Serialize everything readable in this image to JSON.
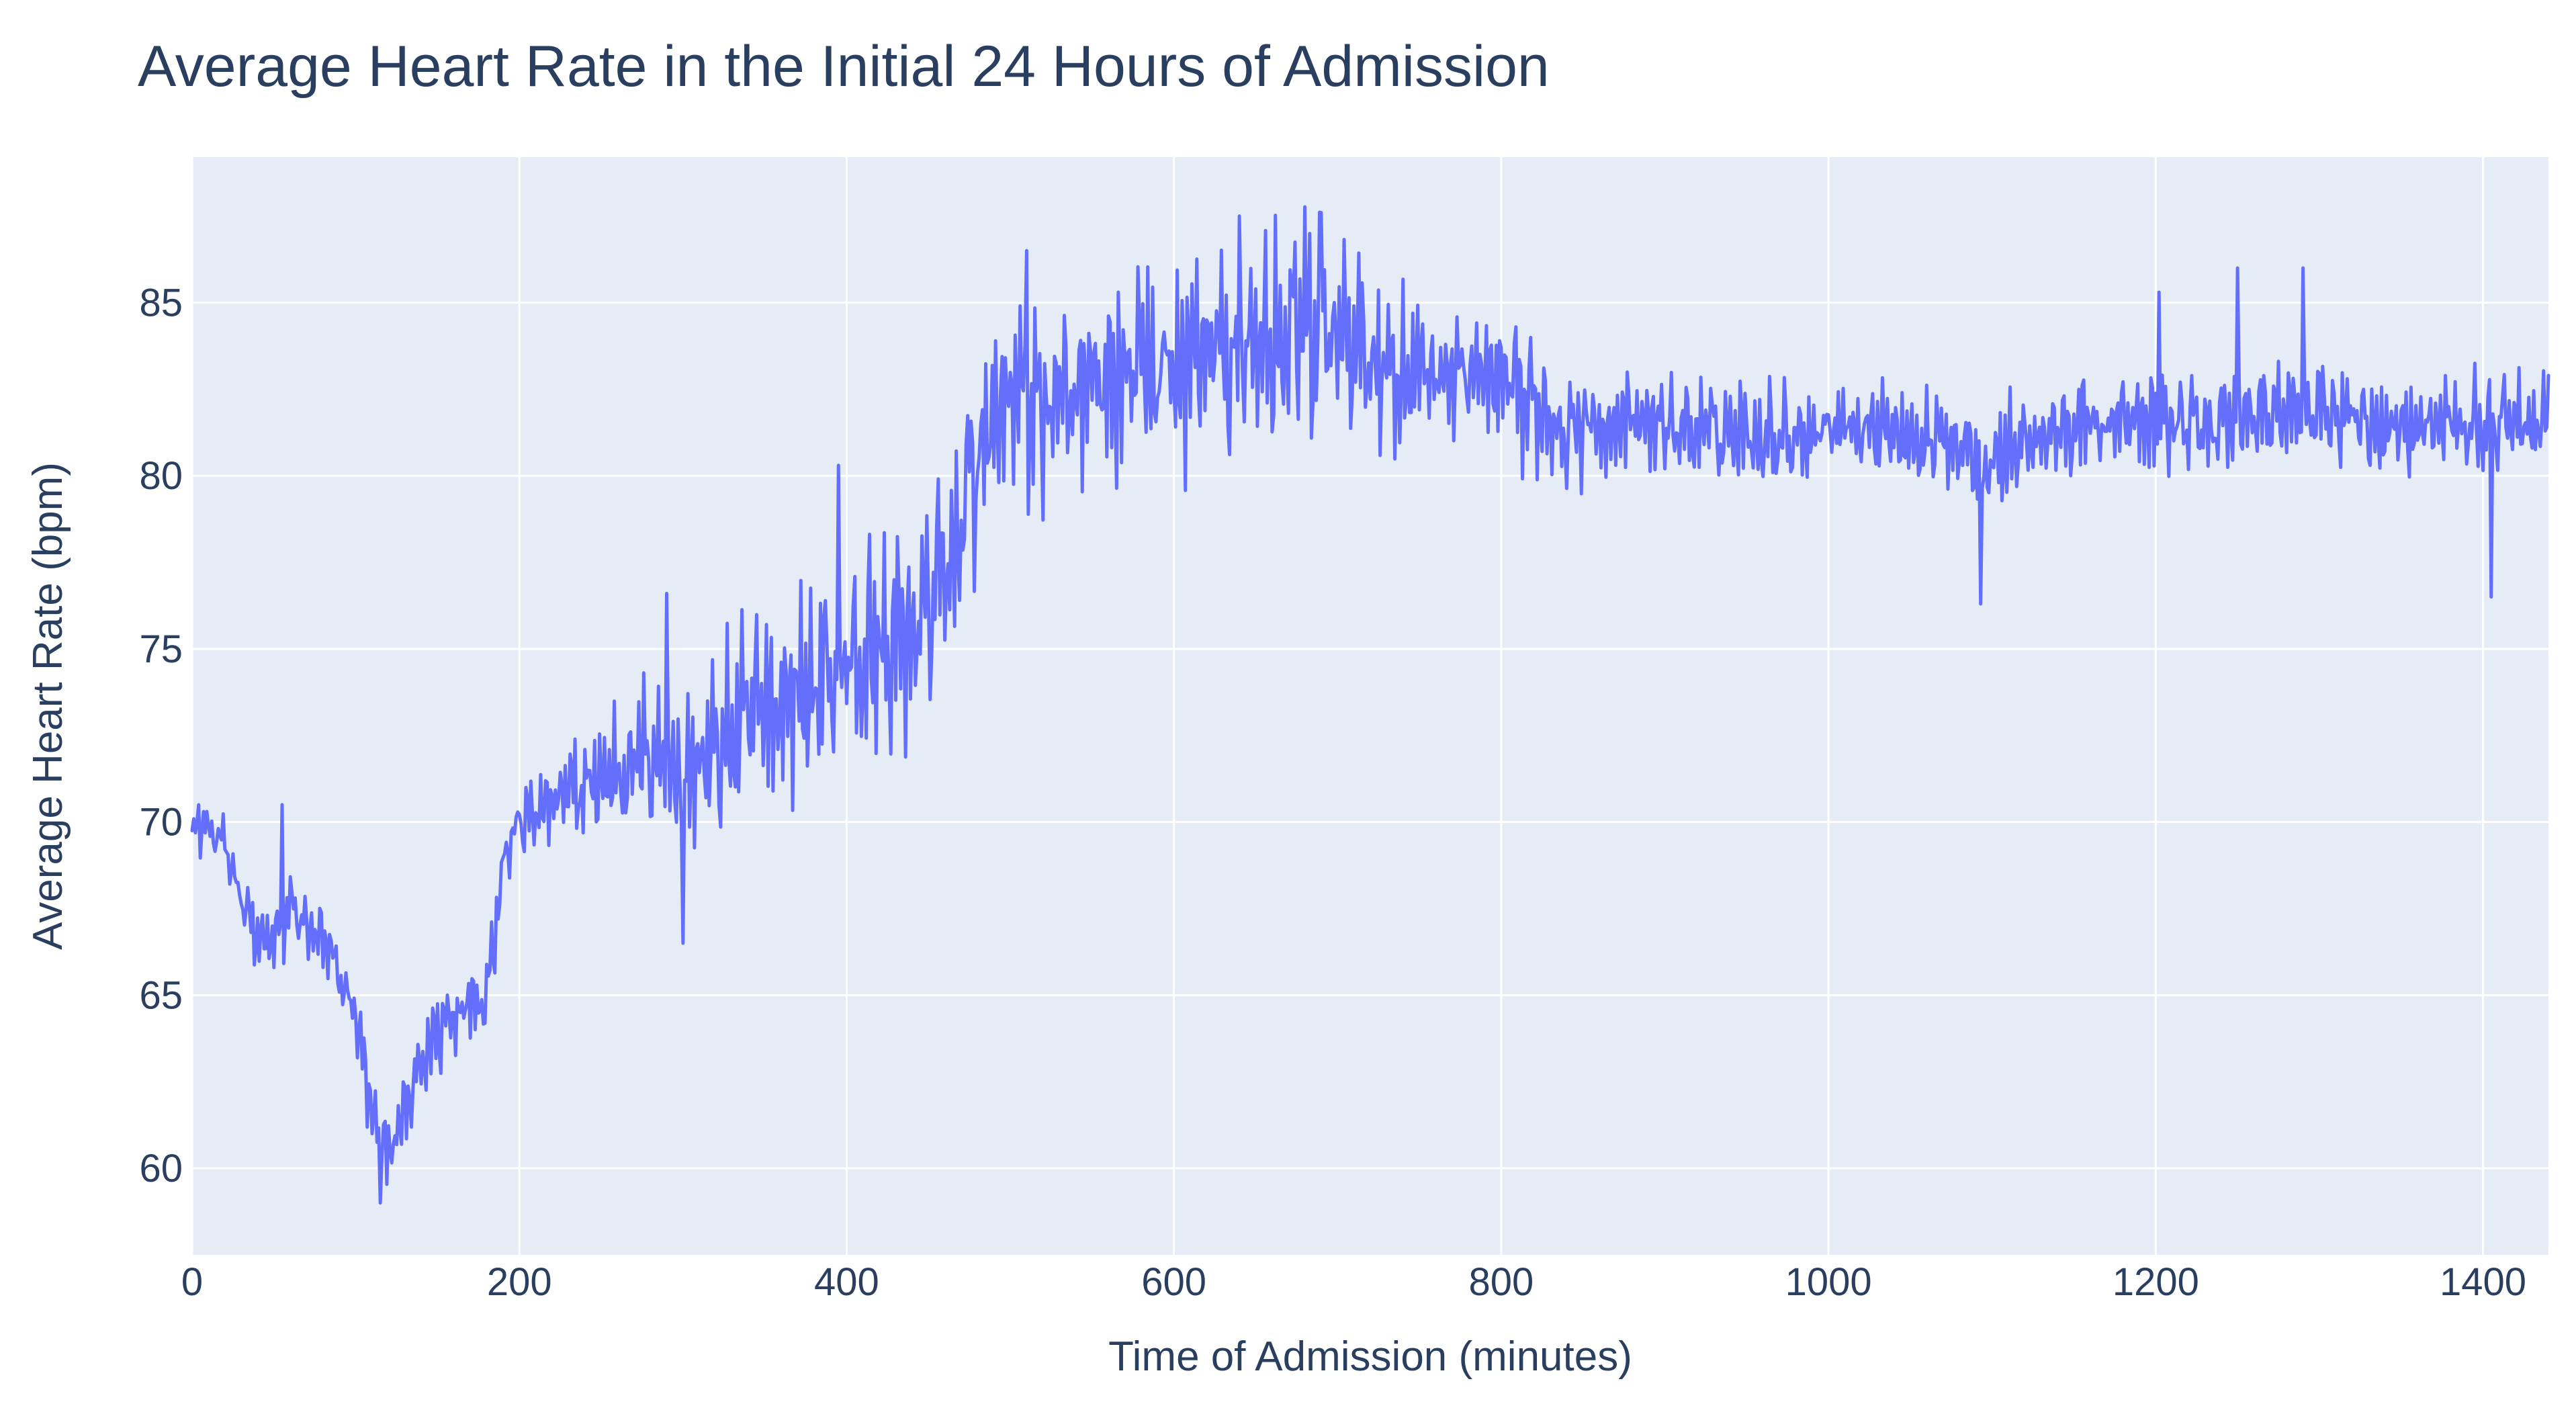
{
  "chart_data": {
    "type": "line",
    "title": "Average Heart Rate in the Initial 24 Hours of Admission",
    "xlabel": "Time of Admission (minutes)",
    "ylabel": "Average Heart Rate (bpm)",
    "xlim": [
      0,
      1440
    ],
    "ylim": [
      57.5,
      89.2
    ],
    "x_ticks": [
      0,
      200,
      400,
      600,
      800,
      1000,
      1200,
      1400
    ],
    "x_tick_labels": [
      "0",
      "200",
      "400",
      "600",
      "800",
      "1000",
      "1200",
      "1400"
    ],
    "y_ticks": [
      60,
      65,
      70,
      75,
      80,
      85
    ],
    "y_tick_labels": [
      "60",
      "65",
      "70",
      "75",
      "80",
      "85"
    ],
    "grid": true,
    "legend": "none",
    "colors": {
      "line": "#636EFA",
      "plot_background": "#E5ECF6",
      "grid": "#FFFFFF",
      "text": "#2A3F5F",
      "paper": "#FFFFFF"
    },
    "series": [
      {
        "x": [
          0,
          10,
          20,
          30,
          40,
          50,
          60,
          70,
          80,
          90,
          100,
          110,
          120,
          130,
          140,
          150,
          160,
          170,
          180,
          190,
          200,
          220,
          240,
          260,
          280,
          300,
          320,
          340,
          360,
          380,
          400,
          420,
          440,
          460,
          480,
          500,
          520,
          540,
          560,
          580,
          600,
          620,
          640,
          660,
          680,
          700,
          720,
          740,
          760,
          780,
          800,
          820,
          840,
          860,
          880,
          900,
          920,
          940,
          960,
          980,
          1000,
          1020,
          1040,
          1060,
          1080,
          1100,
          1120,
          1140,
          1160,
          1180,
          1200,
          1220,
          1240,
          1260,
          1280,
          1300,
          1320,
          1340,
          1360,
          1380,
          1400,
          1420,
          1440
        ],
        "y_trend": [
          70.0,
          69.8,
          69.2,
          68.0,
          66.5,
          66.5,
          67.5,
          67.0,
          66.5,
          65.5,
          64.5,
          61.5,
          60.5,
          61.5,
          63.0,
          64.0,
          64.5,
          65.0,
          65.0,
          69.0,
          70.0,
          70.5,
          71.0,
          71.5,
          72.0,
          71.5,
          72.0,
          73.0,
          73.5,
          74.0,
          74.5,
          75.0,
          75.5,
          77.0,
          80.5,
          82.5,
          82.0,
          82.0,
          82.5,
          83.0,
          83.0,
          83.5,
          83.5,
          84.0,
          84.0,
          84.0,
          83.5,
          83.0,
          83.0,
          83.0,
          82.5,
          82.0,
          81.5,
          81.5,
          81.5,
          81.5,
          81.3,
          81.3,
          81.2,
          81.2,
          81.5,
          81.5,
          81.3,
          81.0,
          81.0,
          80.5,
          81.0,
          81.3,
          81.5,
          81.5,
          81.5,
          81.5,
          81.5,
          81.8,
          81.8,
          81.8,
          81.8,
          81.5,
          81.5,
          81.5,
          81.5,
          81.5,
          81.5
        ],
        "amplitude": [
          0.8,
          0.8,
          0.9,
          1.0,
          1.0,
          1.0,
          1.1,
          1.0,
          1.0,
          1.0,
          1.0,
          1.0,
          1.0,
          1.0,
          1.1,
          1.2,
          1.2,
          1.2,
          1.2,
          1.1,
          1.1,
          1.3,
          1.5,
          1.8,
          2.0,
          2.3,
          2.5,
          2.6,
          2.8,
          2.9,
          3.0,
          3.0,
          3.0,
          2.9,
          2.8,
          2.8,
          2.8,
          2.8,
          2.9,
          3.0,
          3.0,
          3.1,
          3.1,
          3.1,
          3.1,
          3.0,
          2.6,
          2.3,
          2.0,
          1.9,
          1.8,
          1.7,
          1.6,
          1.5,
          1.4,
          1.4,
          1.3,
          1.3,
          1.3,
          1.3,
          1.3,
          1.3,
          1.3,
          1.3,
          1.3,
          1.4,
          1.4,
          1.4,
          1.4,
          1.4,
          1.4,
          1.4,
          1.4,
          1.4,
          1.4,
          1.4,
          1.4,
          1.4,
          1.4,
          1.4,
          1.4,
          1.4,
          1.4
        ],
        "spikes": [
          {
            "x": 55,
            "y": 70.5
          },
          {
            "x": 115,
            "y": 59.0
          },
          {
            "x": 290,
            "y": 76.6
          },
          {
            "x": 300,
            "y": 66.5
          },
          {
            "x": 395,
            "y": 80.3
          },
          {
            "x": 510,
            "y": 86.5
          },
          {
            "x": 640,
            "y": 87.5
          },
          {
            "x": 690,
            "y": 87.6
          },
          {
            "x": 1093,
            "y": 76.3
          },
          {
            "x": 1202,
            "y": 85.3
          },
          {
            "x": 1250,
            "y": 86.0
          },
          {
            "x": 1290,
            "y": 86.0
          },
          {
            "x": 1405,
            "y": 76.5
          }
        ],
        "resolution_minutes": 1
      }
    ]
  }
}
